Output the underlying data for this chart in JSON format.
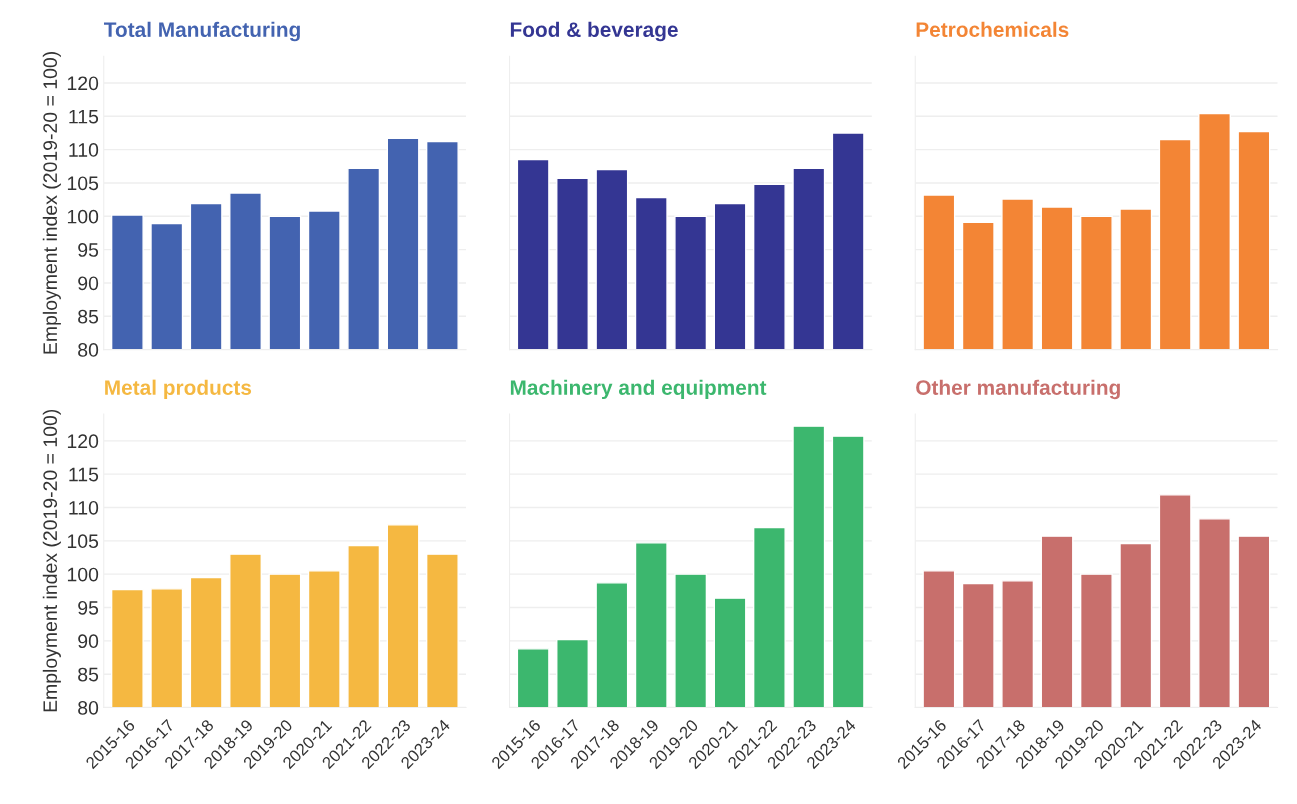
{
  "chart_data": [
    {
      "type": "bar",
      "title": "Total Manufacturing",
      "ylabel": "Employment index (2019-20 = 100)",
      "categories": [
        "2015-16",
        "2016-17",
        "2017-18",
        "2018-19",
        "2019-20",
        "2020-21",
        "2021-22",
        "2022-23",
        "2023-24"
      ],
      "series": [
        {
          "color": "#4363b0",
          "values": [
            100.2,
            98.9,
            101.9,
            103.5,
            100,
            100.8,
            107.2,
            111.7,
            111.2
          ]
        }
      ],
      "ylim": [
        80,
        124
      ],
      "yticks": [
        80,
        85,
        90,
        95,
        100,
        105,
        110,
        115,
        120
      ],
      "grid": "y",
      "tick_labels": "y"
    },
    {
      "type": "bar",
      "title": "Food & beverage",
      "categories": [
        "2015-16",
        "2016-17",
        "2017-18",
        "2018-19",
        "2019-20",
        "2020-21",
        "2021-22",
        "2022-23",
        "2023-24"
      ],
      "series": [
        {
          "color": "#343693",
          "values": [
            108.5,
            105.7,
            107,
            102.8,
            100,
            101.9,
            104.8,
            107.2,
            112.5
          ]
        }
      ],
      "ylim": [
        80,
        124
      ],
      "yticks": [
        80,
        85,
        90,
        95,
        100,
        105,
        110,
        115,
        120
      ],
      "grid": "y",
      "tick_labels": false
    },
    {
      "type": "bar",
      "title": "Petrochemicals",
      "categories": [
        "2015-16",
        "2016-17",
        "2017-18",
        "2018-19",
        "2019-20",
        "2020-21",
        "2021-22",
        "2022-23",
        "2023-24"
      ],
      "series": [
        {
          "color": "#f38535",
          "values": [
            103.2,
            99.1,
            102.6,
            101.4,
            100,
            101.1,
            111.5,
            115.4,
            112.7
          ]
        }
      ],
      "ylim": [
        80,
        124
      ],
      "yticks": [
        80,
        85,
        90,
        95,
        100,
        105,
        110,
        115,
        120
      ],
      "grid": "y",
      "tick_labels": false
    },
    {
      "type": "bar",
      "title": "Metal products",
      "ylabel": "Employment index (2019-20 = 100)",
      "categories": [
        "2015-16",
        "2016-17",
        "2017-18",
        "2018-19",
        "2019-20",
        "2020-21",
        "2021-22",
        "2022-23",
        "2023-24"
      ],
      "series": [
        {
          "color": "#f5b841",
          "values": [
            97.7,
            97.8,
            99.5,
            103.0,
            100,
            100.5,
            104.3,
            107.4,
            103.0
          ]
        }
      ],
      "ylim": [
        80,
        124
      ],
      "yticks": [
        80,
        85,
        90,
        95,
        100,
        105,
        110,
        115,
        120
      ],
      "grid": "y"
    },
    {
      "type": "bar",
      "title": "Machinery and equipment",
      "categories": [
        "2015-16",
        "2016-17",
        "2017-18",
        "2018-19",
        "2019-20",
        "2020-21",
        "2021-22",
        "2022-23",
        "2023-24"
      ],
      "series": [
        {
          "color": "#3cb76e",
          "values": [
            88.8,
            90.2,
            98.7,
            104.7,
            100,
            96.4,
            107.0,
            122.2,
            120.7
          ]
        }
      ],
      "ylim": [
        80,
        124
      ],
      "yticks": [
        80,
        85,
        90,
        95,
        100,
        105,
        110,
        115,
        120
      ],
      "grid": "y",
      "tick_labels": "x"
    },
    {
      "type": "bar",
      "title": "Other manufacturing",
      "categories": [
        "2015-16",
        "2016-17",
        "2017-18",
        "2018-19",
        "2019-20",
        "2020-21",
        "2021-22",
        "2022-23",
        "2023-24"
      ],
      "series": [
        {
          "color": "#c86f6c",
          "values": [
            100.5,
            98.6,
            99.0,
            105.7,
            100,
            104.6,
            111.9,
            108.3,
            105.7
          ]
        }
      ],
      "ylim": [
        80,
        124
      ],
      "yticks": [
        80,
        85,
        90,
        95,
        100,
        105,
        110,
        115,
        120
      ],
      "grid": "y",
      "tick_labels": "x"
    }
  ]
}
